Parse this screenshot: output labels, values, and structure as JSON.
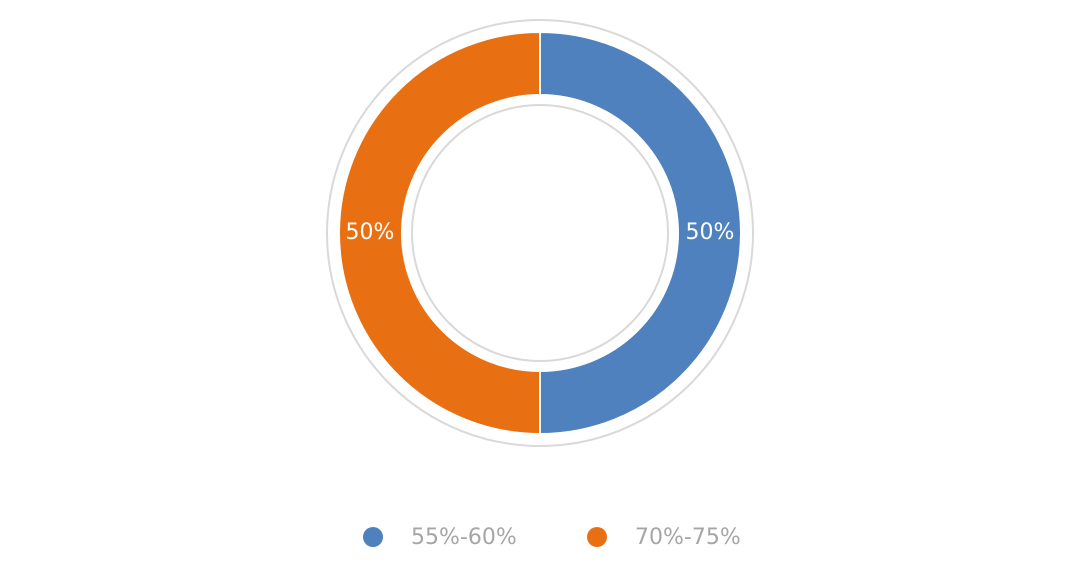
{
  "chart_data": {
    "type": "donut",
    "categories": [
      "55%-60%",
      "70%-75%"
    ],
    "values": [
      50,
      50
    ],
    "value_labels": [
      "50%",
      "50%"
    ],
    "colors": [
      "#4e81bd",
      "#e97012"
    ],
    "legend": "bottom"
  }
}
